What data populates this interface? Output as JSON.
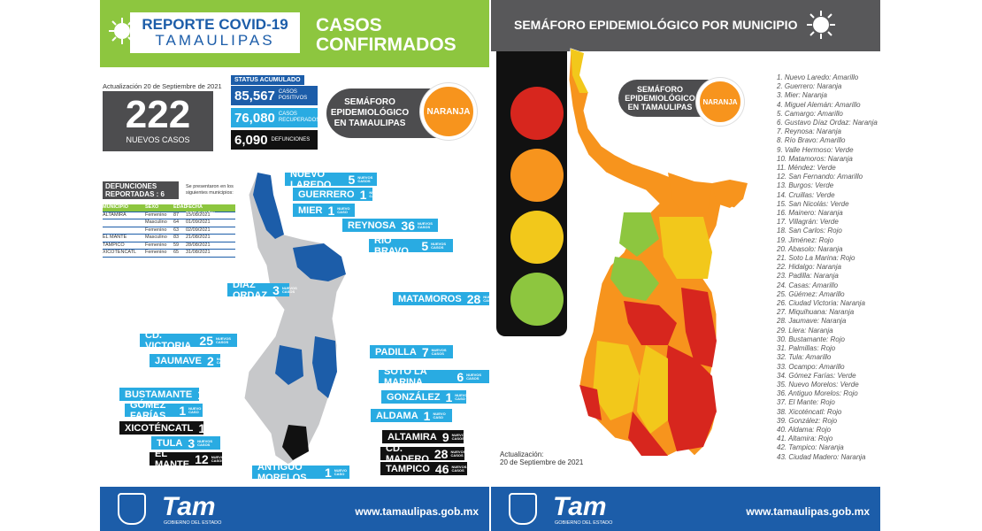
{
  "left": {
    "header_line1": "REPORTE COVID-19",
    "header_line2": "TAMAULIPAS",
    "casos_line1": "CASOS",
    "casos_line2": "CONFIRMADOS",
    "update": "Actualización 20 de Septiembre de 2021",
    "new_cases": "222",
    "new_cases_label": "NUEVOS CASOS",
    "status_label": "STATUS ACUMULADO",
    "stats": [
      {
        "value": "85,567",
        "label": "CASOS POSITIVOS",
        "color": "#1c5da9"
      },
      {
        "value": "76,080",
        "label": "CASOS RECUPERADOS",
        "color": "#29abe2"
      },
      {
        "value": "6,090",
        "label": "DEFUNCIONES",
        "color": "#111111"
      }
    ],
    "semaforo_text": "SEMÁFORO EPIDEMIOLÓGICO EN TAMAULIPAS",
    "semaforo_level": "NARANJA",
    "def_title": "DEFUNCIONES REPORTADAS : 6",
    "def_note": "Se presentaron en los siguientes municipios:",
    "def_cols": [
      "MUNICIPIO",
      "SEXO",
      "EDAD",
      "FECHA DEFUNCIÓN"
    ],
    "def_rows": [
      [
        "ALTAMIRA",
        "Femenino",
        "87",
        "15/08/2021"
      ],
      [
        "",
        "Masculino",
        "64",
        "01/09/2021"
      ],
      [
        "",
        "Femenino",
        "63",
        "02/09/2021"
      ],
      [
        "EL MANTE",
        "Masculino",
        "83",
        "21/08/2021"
      ],
      [
        "TAMPICO",
        "Femenino",
        "59",
        "28/08/2021"
      ],
      [
        "XICOTÉNCATL",
        "Femenino",
        "65",
        "31/08/2021"
      ]
    ],
    "new_label": "NUEVOS CASOS",
    "one_new_label": "NUEVO CASO",
    "def_label": "DEFUNCIÓN",
    "muni_labels": [
      {
        "name": "NUEVO LAREDO",
        "n": "5"
      },
      {
        "name": "GUERRERO",
        "n": "1"
      },
      {
        "name": "MIER",
        "n": "1"
      },
      {
        "name": "REYNOSA",
        "n": "36"
      },
      {
        "name": "RÍO BRAVO",
        "n": "5"
      },
      {
        "name": "DÍAZ ORDAZ",
        "n": "3"
      },
      {
        "name": "MATAMOROS",
        "n": "28"
      },
      {
        "name": "CD. VICTORIA",
        "n": "25"
      },
      {
        "name": "JAUMAVE",
        "n": "2"
      },
      {
        "name": "PADILLA",
        "n": "7"
      },
      {
        "name": "SOTO LA MARINA",
        "n": "6"
      },
      {
        "name": "BUSTAMANTE",
        "n": "1"
      },
      {
        "name": "GONZÁLEZ",
        "n": "1"
      },
      {
        "name": "GÓMEZ FARÍAS",
        "n": "1"
      },
      {
        "name": "ALDAMA",
        "n": "1"
      },
      {
        "name": "XICOTÉNCATL",
        "n": "1"
      },
      {
        "name": "ALTAMIRA",
        "n": "9"
      },
      {
        "name": "TULA",
        "n": "3"
      },
      {
        "name": "CD. MADERO",
        "n": "28"
      },
      {
        "name": "EL MANTE",
        "n": "12"
      },
      {
        "name": "TAMPICO",
        "n": "46"
      },
      {
        "name": "ANTIGUO MORELOS",
        "n": "1"
      }
    ],
    "footer_url": "www.tamaulipas.gob.mx",
    "footer_logo": "Tam",
    "footer_gob": "GOBIERNO DEL ESTADO"
  },
  "right": {
    "title": "SEMÁFORO EPIDEMIOLÓGICO POR MUNICIPIO",
    "semaforo_text": "SEMÁFORO EPIDEMIOLÓGICO EN TAMAULIPAS",
    "semaforo_level": "NARANJA",
    "update_line1": "Actualización:",
    "update_line2": "20 de Septiembre de 2021",
    "municipios": [
      "1. Nuevo Laredo: Amarillo",
      "2. Guerrero: Naranja",
      "3. Mier: Naranja",
      "4. Miguel Alemán: Amarillo",
      "5. Camargo: Amarillo",
      "6. Gustavo Díaz Ordaz: Naranja",
      "7. Reynosa: Naranja",
      "8. Río Bravo: Amarillo",
      "9. Valle Hermoso: Verde",
      "10. Matamoros: Naranja",
      "11. Méndez: Verde",
      "12. San Fernando: Amarillo",
      "13. Burgos: Verde",
      "14. Cruillas: Verde",
      "15. San Nicolás: Verde",
      "16. Mainero: Naranja",
      "17. Villagrán: Verde",
      "18. San Carlos: Rojo",
      "19. Jiménez: Rojo",
      "20. Abasolo: Naranja",
      "21. Soto La Marina: Rojo",
      "22. Hidalgo: Naranja",
      "23. Padilla: Naranja",
      "24. Casas: Amarillo",
      "25. Güémez: Amarillo",
      "26. Ciudad Victoria: Naranja",
      "27. Miquihuana: Naranja",
      "28. Jaumave: Naranja",
      "29. Llera: Naranja",
      "30. Bustamante: Rojo",
      "31. Palmillas: Rojo",
      "32. Tula: Amarillo",
      "33. Ocampo: Amarillo",
      "34. Gómez Farías: Verde",
      "35. Nuevo Morelos: Verde",
      "36. Antiguo Morelos: Rojo",
      "37. El Mante: Rojo",
      "38. Xicoténcatl: Rojo",
      "39. González: Rojo",
      "40. Aldama: Rojo",
      "41. Altamira: Rojo",
      "42. Tampico: Naranja",
      "43. Ciudad Madero: Naranja"
    ],
    "footer_url": "www.tamaulipas.gob.mx",
    "footer_logo": "Tam",
    "footer_gob": "GOBIERNO DEL ESTADO"
  },
  "colors": {
    "rojo": "#d7261e",
    "naranja": "#f7941d",
    "amarillo": "#f2c81b",
    "verde": "#8dc63f",
    "blue": "#1c5da9"
  }
}
